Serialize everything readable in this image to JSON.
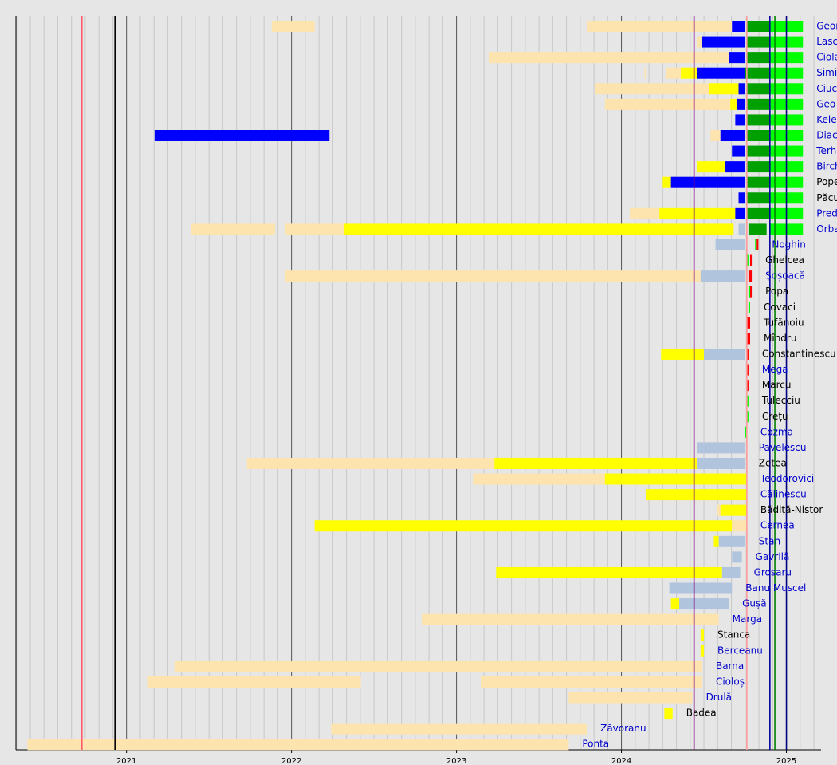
{
  "chart_data": {
    "type": "timeline",
    "xlim": [
      2020.33,
      2025.21
    ],
    "xticks": [
      2021,
      2022,
      2023,
      2024,
      2025
    ],
    "minor_grid": true,
    "markers": [
      {
        "value": 2020.73,
        "color": "#ff5a6e"
      },
      {
        "value": 2020.93,
        "color": "#000000"
      },
      {
        "value": 2024.44,
        "color": "#800080"
      },
      {
        "value": 2024.76,
        "color": "#ff9a9a"
      },
      {
        "value": 2024.9,
        "color": "#0000a0"
      },
      {
        "value": 2024.93,
        "color": "#008000"
      },
      {
        "value": 2025.0,
        "color": "#000080"
      }
    ],
    "rows": [
      {
        "name": "Geor",
        "color": "#0000cc",
        "segments": [
          [
            2021.88,
            2022.14,
            "#fde3ad"
          ],
          [
            2023.79,
            2024.67,
            "#fde3ad"
          ],
          [
            2024.67,
            2024.75,
            "#0000ff"
          ],
          [
            2024.76,
            2024.9,
            "#00a000"
          ],
          [
            2024.9,
            2025.1,
            "#00ff00"
          ]
        ]
      },
      {
        "name": "Lasc",
        "color": "#0000cc",
        "segments": [
          [
            2024.46,
            2024.49,
            "#fde3ad"
          ],
          [
            2024.49,
            2024.75,
            "#0000ff"
          ],
          [
            2024.76,
            2024.9,
            "#00a000"
          ],
          [
            2024.9,
            2025.1,
            "#00ff00"
          ]
        ]
      },
      {
        "name": "Ciola",
        "color": "#0000cc",
        "segments": [
          [
            2023.2,
            2024.65,
            "#fde3ad"
          ],
          [
            2024.65,
            2024.75,
            "#0000ff"
          ],
          [
            2024.76,
            2024.9,
            "#00a000"
          ],
          [
            2024.9,
            2025.1,
            "#00ff00"
          ]
        ]
      },
      {
        "name": "Simi",
        "color": "#0000cc",
        "segments": [
          [
            2024.14,
            2024.15,
            "#fde3ad"
          ],
          [
            2024.27,
            2024.36,
            "#fde3ad"
          ],
          [
            2024.36,
            2024.46,
            "#ffff00"
          ],
          [
            2024.46,
            2024.75,
            "#0000ff"
          ],
          [
            2024.75,
            2024.9,
            "#00a000"
          ],
          [
            2024.9,
            2025.1,
            "#00ff00"
          ]
        ]
      },
      {
        "name": "Ciuc",
        "color": "#0000cc",
        "segments": [
          [
            2023.84,
            2024.53,
            "#fde3ad"
          ],
          [
            2024.53,
            2024.71,
            "#ffff00"
          ],
          [
            2024.71,
            2024.75,
            "#0000ff"
          ],
          [
            2024.76,
            2024.9,
            "#00a000"
          ],
          [
            2024.9,
            2025.1,
            "#00ff00"
          ]
        ]
      },
      {
        "name": "Geo",
        "color": "#0000cc",
        "segments": [
          [
            2023.9,
            2024.66,
            "#fde3ad"
          ],
          [
            2024.66,
            2024.7,
            "#ffff00"
          ],
          [
            2024.7,
            2024.75,
            "#0000ff"
          ],
          [
            2024.76,
            2024.9,
            "#00a000"
          ],
          [
            2024.9,
            2025.1,
            "#00ff00"
          ]
        ]
      },
      {
        "name": "Kele",
        "color": "#0000cc",
        "segments": [
          [
            2024.69,
            2024.75,
            "#0000ff"
          ],
          [
            2024.76,
            2024.9,
            "#00a000"
          ],
          [
            2024.9,
            2025.1,
            "#00ff00"
          ]
        ]
      },
      {
        "name": "Diac",
        "color": "#0000cc",
        "segments": [
          [
            2021.17,
            2022.23,
            "#0000ff"
          ],
          [
            2024.54,
            2024.6,
            "#fde3ad"
          ],
          [
            2024.6,
            2024.75,
            "#0000ff"
          ],
          [
            2024.76,
            2024.9,
            "#00a000"
          ],
          [
            2024.9,
            2025.1,
            "#00ff00"
          ]
        ]
      },
      {
        "name": "Terh",
        "color": "#0000cc",
        "segments": [
          [
            2024.67,
            2024.75,
            "#0000ff"
          ],
          [
            2024.76,
            2024.9,
            "#00a000"
          ],
          [
            2024.9,
            2025.1,
            "#00ff00"
          ]
        ]
      },
      {
        "name": "Birch",
        "color": "#0000cc",
        "segments": [
          [
            2024.46,
            2024.63,
            "#ffff00"
          ],
          [
            2024.63,
            2024.75,
            "#0000ff"
          ],
          [
            2024.76,
            2024.9,
            "#00a000"
          ],
          [
            2024.9,
            2025.1,
            "#00ff00"
          ]
        ]
      },
      {
        "name": "Pope",
        "color": "#000000",
        "segments": [
          [
            2024.25,
            2024.3,
            "#ffff00"
          ],
          [
            2024.3,
            2024.75,
            "#0000ff"
          ],
          [
            2024.76,
            2024.9,
            "#00a000"
          ],
          [
            2024.9,
            2025.1,
            "#00ff00"
          ]
        ]
      },
      {
        "name": "Păcu",
        "color": "#000000",
        "segments": [
          [
            2024.71,
            2024.75,
            "#0000ff"
          ],
          [
            2024.76,
            2024.9,
            "#00a000"
          ],
          [
            2024.9,
            2025.1,
            "#00ff00"
          ]
        ]
      },
      {
        "name": "Pred",
        "color": "#0000cc",
        "segments": [
          [
            2024.05,
            2024.23,
            "#fde3ad"
          ],
          [
            2024.23,
            2024.69,
            "#ffff00"
          ],
          [
            2024.69,
            2024.75,
            "#0000ff"
          ],
          [
            2024.76,
            2024.9,
            "#00a000"
          ],
          [
            2024.9,
            2025.1,
            "#00ff00"
          ]
        ]
      },
      {
        "name": "Orba",
        "color": "#0000cc",
        "segments": [
          [
            2021.39,
            2021.9,
            "#fde3ad"
          ],
          [
            2021.96,
            2022.32,
            "#fde3ad"
          ],
          [
            2022.32,
            2024.68,
            "#ffff00"
          ],
          [
            2024.71,
            2024.75,
            "#b0c4de"
          ],
          [
            2024.77,
            2024.88,
            "#00a000"
          ],
          [
            2024.9,
            2025.1,
            "#00ff00"
          ]
        ]
      },
      {
        "name": "Noghin",
        "color": "#0000cc",
        "segments": [
          [
            2024.57,
            2024.75,
            "#b0c4de"
          ],
          [
            2024.81,
            2024.82,
            "#00ff00"
          ],
          [
            2024.82,
            2024.83,
            "#ff0000"
          ]
        ]
      },
      {
        "name": "Ghelcea",
        "color": "#000000",
        "segments": [
          [
            2024.76,
            2024.77,
            "#00ff00"
          ],
          [
            2024.78,
            2024.79,
            "#ff0000"
          ]
        ]
      },
      {
        "name": "Șoșoacă",
        "color": "#0000cc",
        "segments": [
          [
            2021.96,
            2024.48,
            "#fde3ad"
          ],
          [
            2024.48,
            2024.75,
            "#b0c4de"
          ],
          [
            2024.77,
            2024.78,
            "#ff0000"
          ],
          [
            2024.78,
            2024.79,
            "#ff0000"
          ]
        ]
      },
      {
        "name": "Popa",
        "color": "#000000",
        "segments": [
          [
            2024.77,
            2024.78,
            "#00ff00"
          ],
          [
            2024.78,
            2024.79,
            "#ff0000"
          ]
        ]
      },
      {
        "name": "Covaci",
        "color": "#000000",
        "segments": [
          [
            2024.77,
            2024.78,
            "#00ff00"
          ]
        ]
      },
      {
        "name": "Tufănoiu",
        "color": "#000000",
        "segments": [
          [
            2024.76,
            2024.78,
            "#ff0000"
          ]
        ]
      },
      {
        "name": "Mîndru",
        "color": "#000000",
        "segments": [
          [
            2024.76,
            2024.78,
            "#ff0000"
          ]
        ]
      },
      {
        "name": "Constantinescu",
        "color": "#000000",
        "segments": [
          [
            2024.24,
            2024.5,
            "#ffff00"
          ],
          [
            2024.5,
            2024.75,
            "#b0c4de"
          ],
          [
            2024.76,
            2024.77,
            "#ff0000"
          ]
        ]
      },
      {
        "name": "Mega",
        "color": "#0000cc",
        "segments": [
          [
            2024.76,
            2024.77,
            "#ff0000"
          ]
        ]
      },
      {
        "name": "Marcu",
        "color": "#000000",
        "segments": [
          [
            2024.76,
            2024.77,
            "#ff0000"
          ]
        ]
      },
      {
        "name": "Tulecciu",
        "color": "#000000",
        "segments": [
          [
            2024.76,
            2024.77,
            "#00ff00"
          ]
        ]
      },
      {
        "name": "Crețu",
        "color": "#000000",
        "segments": [
          [
            2024.76,
            2024.77,
            "#00ff00"
          ]
        ]
      },
      {
        "name": "Cozma",
        "color": "#0000cc",
        "segments": [
          [
            2024.75,
            2024.76,
            "#00ff00"
          ]
        ]
      },
      {
        "name": "Pavelescu",
        "color": "#0000cc",
        "segments": [
          [
            2024.46,
            2024.75,
            "#b0c4de"
          ]
        ]
      },
      {
        "name": "Zetea",
        "color": "#000000",
        "segments": [
          [
            2021.73,
            2023.23,
            "#fde3ad"
          ],
          [
            2023.23,
            2024.46,
            "#ffff00"
          ],
          [
            2024.46,
            2024.75,
            "#b0c4de"
          ]
        ]
      },
      {
        "name": "Teodorovici",
        "color": "#0000cc",
        "segments": [
          [
            2023.1,
            2023.9,
            "#fde3ad"
          ],
          [
            2023.9,
            2024.76,
            "#ffff00"
          ]
        ]
      },
      {
        "name": "Călinescu",
        "color": "#0000cc",
        "segments": [
          [
            2024.15,
            2024.76,
            "#ffff00"
          ]
        ]
      },
      {
        "name": "Bădiță-Nistor",
        "color": "#000000",
        "segments": [
          [
            2024.58,
            2024.6,
            "#fde3ad"
          ],
          [
            2024.6,
            2024.76,
            "#ffff00"
          ]
        ]
      },
      {
        "name": "Cernea",
        "color": "#0000cc",
        "segments": [
          [
            2022.14,
            2024.67,
            "#ffff00"
          ],
          [
            2024.67,
            2024.76,
            "#fde3ad"
          ]
        ]
      },
      {
        "name": "Stan",
        "color": "#0000cc",
        "segments": [
          [
            2024.56,
            2024.59,
            "#ffff00"
          ],
          [
            2024.59,
            2024.75,
            "#b0c4de"
          ]
        ]
      },
      {
        "name": "Gavrilă",
        "color": "#0000cc",
        "segments": [
          [
            2024.67,
            2024.73,
            "#b0c4de"
          ]
        ]
      },
      {
        "name": "Grosaru",
        "color": "#0000cc",
        "segments": [
          [
            2023.24,
            2024.61,
            "#ffff00"
          ],
          [
            2024.61,
            2024.72,
            "#b0c4de"
          ]
        ]
      },
      {
        "name": "Banu Muscel",
        "color": "#0000cc",
        "segments": [
          [
            2024.29,
            2024.67,
            "#b0c4de"
          ]
        ]
      },
      {
        "name": "Gușă",
        "color": "#0000cc",
        "segments": [
          [
            2024.3,
            2024.35,
            "#ffff00"
          ],
          [
            2024.35,
            2024.65,
            "#b0c4de"
          ]
        ]
      },
      {
        "name": "Marga",
        "color": "#0000cc",
        "segments": [
          [
            2022.79,
            2024.59,
            "#fde3ad"
          ]
        ]
      },
      {
        "name": "Stanca",
        "color": "#000000",
        "segments": [
          [
            2024.48,
            2024.5,
            "#ffff00"
          ]
        ]
      },
      {
        "name": "Berceanu",
        "color": "#0000cc",
        "segments": [
          [
            2024.48,
            2024.5,
            "#ffff00"
          ]
        ]
      },
      {
        "name": "Barna",
        "color": "#0000cc",
        "segments": [
          [
            2021.29,
            2024.49,
            "#fde3ad"
          ]
        ]
      },
      {
        "name": "Cioloș",
        "color": "#0000cc",
        "segments": [
          [
            2021.13,
            2022.42,
            "#fde3ad"
          ],
          [
            2023.15,
            2024.49,
            "#fde3ad"
          ]
        ]
      },
      {
        "name": "Drulă",
        "color": "#0000cc",
        "segments": [
          [
            2023.68,
            2024.43,
            "#fde3ad"
          ]
        ]
      },
      {
        "name": "Badea",
        "color": "#000000",
        "segments": [
          [
            2024.26,
            2024.31,
            "#ffff00"
          ]
        ]
      },
      {
        "name": "Zăvoranu",
        "color": "#0000cc",
        "segments": [
          [
            2022.24,
            2023.79,
            "#fde3ad"
          ]
        ]
      },
      {
        "name": "Ponta",
        "color": "#0000cc",
        "segments": [
          [
            2020.4,
            2023.68,
            "#fde3ad"
          ]
        ]
      }
    ]
  }
}
